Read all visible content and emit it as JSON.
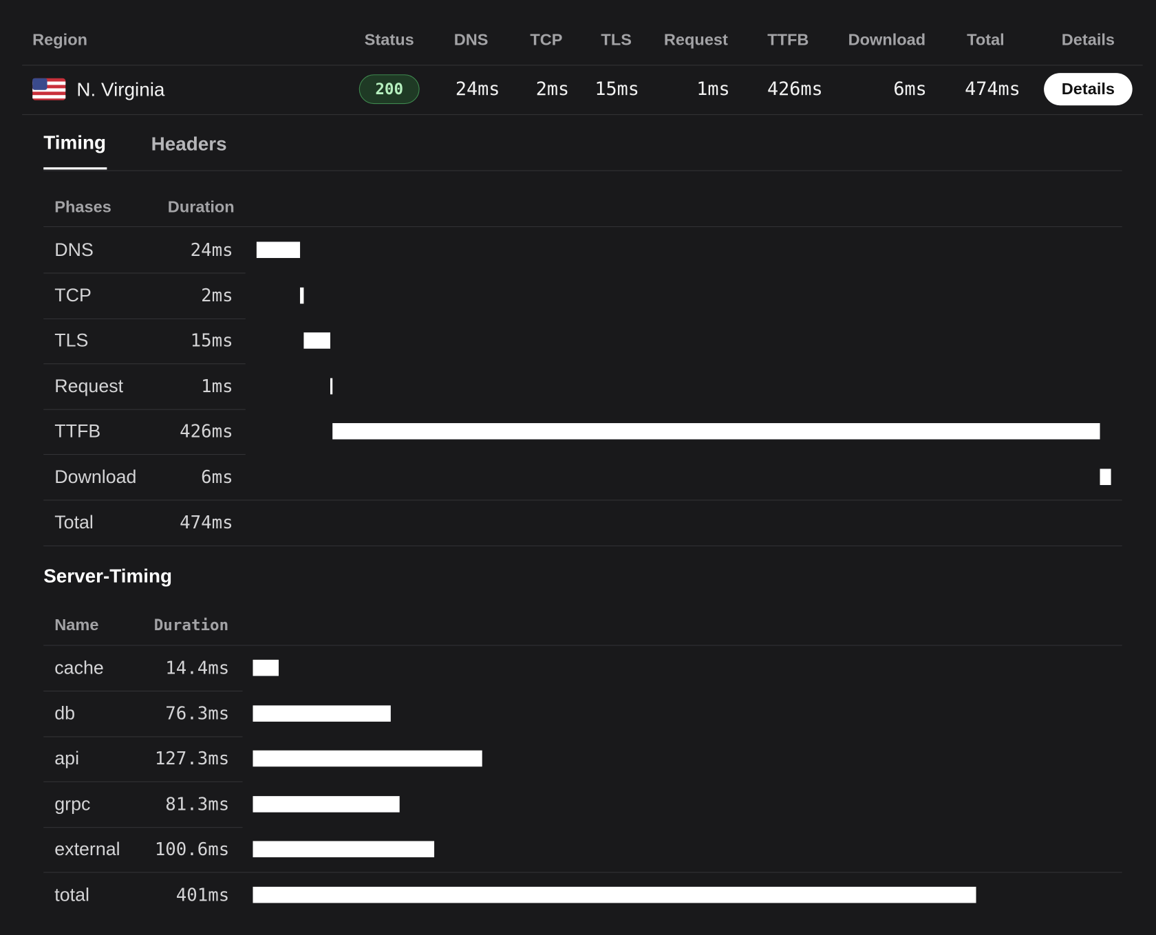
{
  "table": {
    "columns": [
      "Region",
      "Status",
      "DNS",
      "TCP",
      "TLS",
      "Request",
      "TTFB",
      "Download",
      "Total",
      "Details"
    ],
    "row": {
      "region": "N. Virginia",
      "status": "200",
      "cells": [
        "24ms",
        "2ms",
        "15ms",
        "1ms",
        "426ms",
        "6ms",
        "474ms"
      ],
      "button": "Details"
    }
  },
  "tabs": [
    "Timing",
    "Headers"
  ],
  "timing": {
    "columns": [
      "Phases",
      "Duration"
    ],
    "phases": [
      "DNS",
      "TCP",
      "TLS",
      "Request",
      "TTFB",
      "Download",
      "Total"
    ],
    "values": [
      24,
      2,
      15,
      1,
      426,
      6,
      474
    ],
    "value_labels": [
      "24ms",
      "2ms",
      "15ms",
      "1ms",
      "426ms",
      "6ms",
      "474ms"
    ]
  },
  "server_timing": {
    "title": "Server-Timing",
    "columns": [
      "Name",
      "Duration"
    ],
    "names": [
      "cache",
      "db",
      "api",
      "grpc",
      "external",
      "total"
    ],
    "values": [
      14.4,
      76.3,
      127.3,
      81.3,
      100.6,
      401
    ],
    "value_labels": [
      "14.4ms",
      "76.3ms",
      "127.3ms",
      "81.3ms",
      "100.6ms",
      "401ms"
    ]
  }
}
